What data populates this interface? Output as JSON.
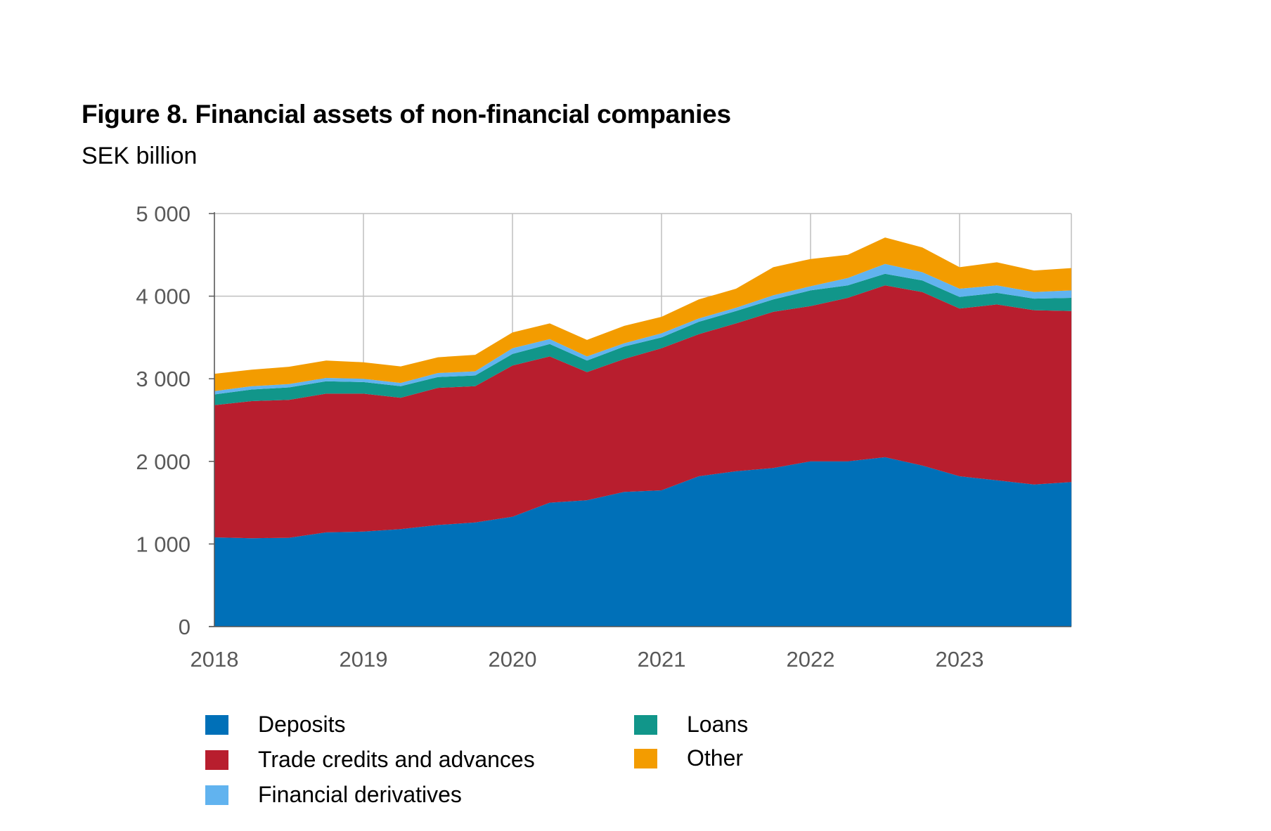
{
  "title": "Figure 8. Financial assets of non-financial companies",
  "subtitle": "SEK billion",
  "chart_data": {
    "type": "area",
    "stacked": true,
    "x": [
      2018.0,
      2018.25,
      2018.5,
      2018.75,
      2019.0,
      2019.25,
      2019.5,
      2019.75,
      2020.0,
      2020.25,
      2020.5,
      2020.75,
      2021.0,
      2021.25,
      2021.5,
      2021.75,
      2022.0,
      2022.25,
      2022.5,
      2022.75,
      2023.0,
      2023.25,
      2023.5,
      2023.75
    ],
    "x_tick_labels": [
      "2018",
      "2019",
      "2020",
      "2021",
      "2022",
      "2023"
    ],
    "x_ticks": [
      2018,
      2019,
      2020,
      2021,
      2022,
      2023
    ],
    "y_tick_labels": [
      "0",
      "1 000",
      "2 000",
      "3 000",
      "4 000",
      "5 000"
    ],
    "y_ticks": [
      0,
      1000,
      2000,
      3000,
      4000,
      5000
    ],
    "ylim": [
      0,
      5000
    ],
    "xlim": [
      2018.0,
      2023.75
    ],
    "grid": true,
    "legend_position": "bottom",
    "series": [
      {
        "name": "Deposits",
        "color": "#0070b8",
        "values": [
          1080,
          1070,
          1075,
          1140,
          1150,
          1180,
          1230,
          1260,
          1330,
          1500,
          1530,
          1630,
          1650,
          1820,
          1880,
          1920,
          2000,
          2000,
          2050,
          1950,
          1820,
          1770,
          1720,
          1750
        ]
      },
      {
        "name": "Trade credits and advances",
        "color": "#b81e2e",
        "values": [
          1600,
          1660,
          1670,
          1680,
          1670,
          1590,
          1660,
          1650,
          1830,
          1770,
          1550,
          1610,
          1720,
          1720,
          1790,
          1890,
          1880,
          1980,
          2080,
          2100,
          2030,
          2130,
          2110,
          2070
        ]
      },
      {
        "name": "Loans",
        "color": "#11968a",
        "values": [
          130,
          140,
          150,
          150,
          140,
          140,
          130,
          130,
          140,
          150,
          140,
          150,
          130,
          150,
          150,
          150,
          190,
          150,
          140,
          140,
          140,
          140,
          140,
          160
        ]
      },
      {
        "name": "Financial derivatives",
        "color": "#61b3ef",
        "values": [
          40,
          40,
          40,
          40,
          40,
          40,
          50,
          50,
          70,
          60,
          50,
          40,
          50,
          40,
          40,
          50,
          50,
          90,
          120,
          100,
          100,
          90,
          80,
          90
        ]
      },
      {
        "name": "Other",
        "color": "#f39c00",
        "values": [
          210,
          200,
          210,
          210,
          200,
          200,
          190,
          200,
          190,
          190,
          200,
          210,
          200,
          230,
          230,
          340,
          330,
          280,
          320,
          300,
          260,
          280,
          260,
          270
        ]
      }
    ]
  },
  "legend": [
    {
      "label": "Deposits",
      "color": "#0070b8"
    },
    {
      "label": "Trade credits and advances",
      "color": "#b81e2e"
    },
    {
      "label": "Financial derivatives",
      "color": "#61b3ef"
    },
    {
      "label": "Loans",
      "color": "#11968a"
    },
    {
      "label": "Other",
      "color": "#f39c00"
    }
  ]
}
